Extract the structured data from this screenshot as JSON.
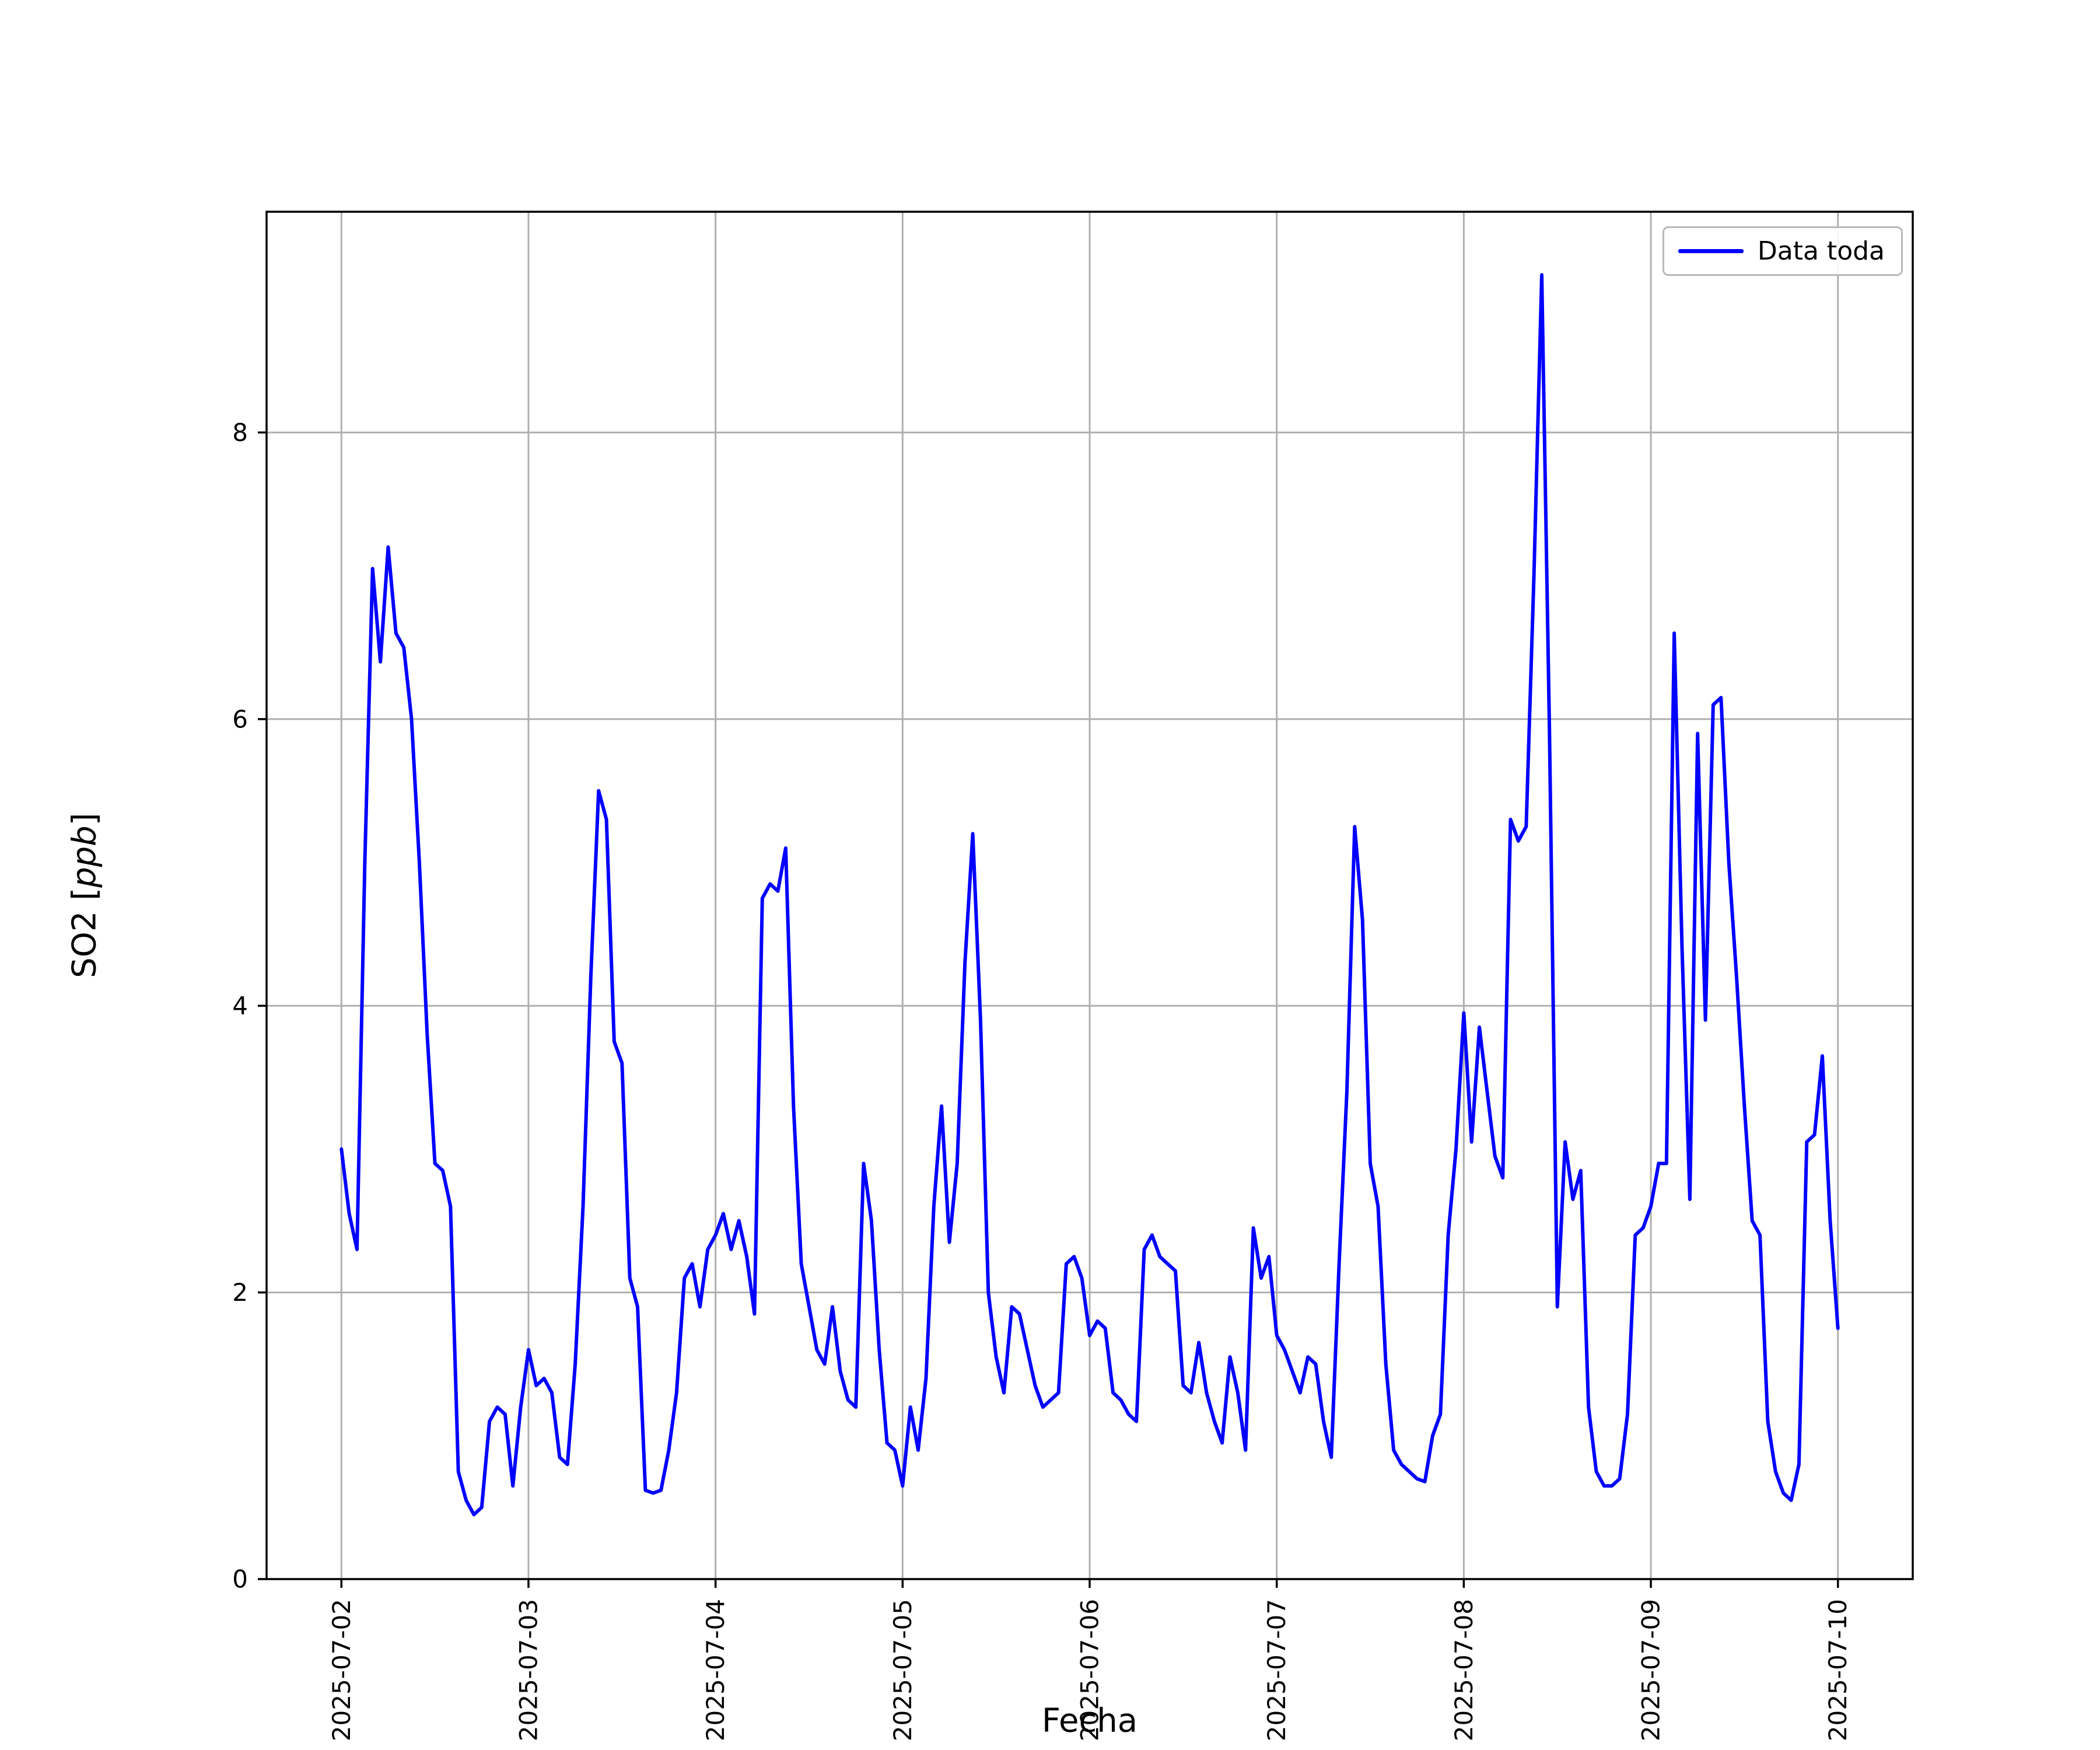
{
  "chart_data": {
    "type": "line",
    "title": "",
    "xlabel": "Fecha",
    "ylabel": "SO2 [ppb]",
    "ylabel_prefix": "SO2 [",
    "ylabel_math": "ppb",
    "ylabel_suffix": "]",
    "legend_label": "Data toda",
    "legend_position": "upper right",
    "line_color": "#0000ff",
    "grid": true,
    "grid_color": "#b0b0b0",
    "x_start": "2025-07-02 00:00",
    "x_interval": "1 hour",
    "x_ticks": [
      "2025-07-02",
      "2025-07-03",
      "2025-07-04",
      "2025-07-05",
      "2025-07-06",
      "2025-07-07",
      "2025-07-08",
      "2025-07-09",
      "2025-07-10"
    ],
    "y_ticks": [
      0,
      2,
      4,
      6,
      8
    ],
    "xlim_days": [
      -0.4,
      8.4
    ],
    "ylim": [
      0,
      9.54
    ],
    "values": [
      3.0,
      2.55,
      2.3,
      5.0,
      7.05,
      6.4,
      7.2,
      6.6,
      6.5,
      6.0,
      5.0,
      3.8,
      2.9,
      2.85,
      2.6,
      0.75,
      0.55,
      0.45,
      0.5,
      1.1,
      1.2,
      1.15,
      0.65,
      1.2,
      1.6,
      1.35,
      1.4,
      1.3,
      0.85,
      0.8,
      1.5,
      2.6,
      4.2,
      5.5,
      5.3,
      3.75,
      3.6,
      2.1,
      1.9,
      0.62,
      0.6,
      0.62,
      0.9,
      1.3,
      2.1,
      2.2,
      1.9,
      2.3,
      2.4,
      2.55,
      2.3,
      2.5,
      2.25,
      1.85,
      4.75,
      4.85,
      4.8,
      5.1,
      3.3,
      2.2,
      1.9,
      1.6,
      1.5,
      1.9,
      1.45,
      1.25,
      1.2,
      2.9,
      2.5,
      1.6,
      0.95,
      0.9,
      0.65,
      1.2,
      0.9,
      1.4,
      2.6,
      3.3,
      2.35,
      2.9,
      4.3,
      5.2,
      3.9,
      2.0,
      1.55,
      1.3,
      1.9,
      1.85,
      1.6,
      1.35,
      1.2,
      1.25,
      1.3,
      2.2,
      2.25,
      2.1,
      1.7,
      1.8,
      1.75,
      1.3,
      1.25,
      1.15,
      1.1,
      2.3,
      2.4,
      2.25,
      2.2,
      2.15,
      1.35,
      1.3,
      1.65,
      1.3,
      1.1,
      0.95,
      1.55,
      1.3,
      0.9,
      2.45,
      2.1,
      2.25,
      1.7,
      1.6,
      1.45,
      1.3,
      1.55,
      1.5,
      1.1,
      0.85,
      2.2,
      3.4,
      5.25,
      4.6,
      2.9,
      2.6,
      1.5,
      0.9,
      0.8,
      0.75,
      0.7,
      0.68,
      1.0,
      1.15,
      2.4,
      3.0,
      3.95,
      3.05,
      3.85,
      3.4,
      2.95,
      2.8,
      5.3,
      5.15,
      5.25,
      7.0,
      9.1,
      5.9,
      1.9,
      3.05,
      2.65,
      2.85,
      1.2,
      0.75,
      0.65,
      0.65,
      0.7,
      1.15,
      2.4,
      2.45,
      2.6,
      2.9,
      2.9,
      6.6,
      4.4,
      2.65,
      5.9,
      3.9,
      6.1,
      6.15,
      5.0,
      4.2,
      3.3,
      2.5,
      2.4,
      1.1,
      0.75,
      0.6,
      0.55,
      0.8,
      3.05,
      3.1,
      3.65,
      2.5,
      1.75
    ]
  }
}
